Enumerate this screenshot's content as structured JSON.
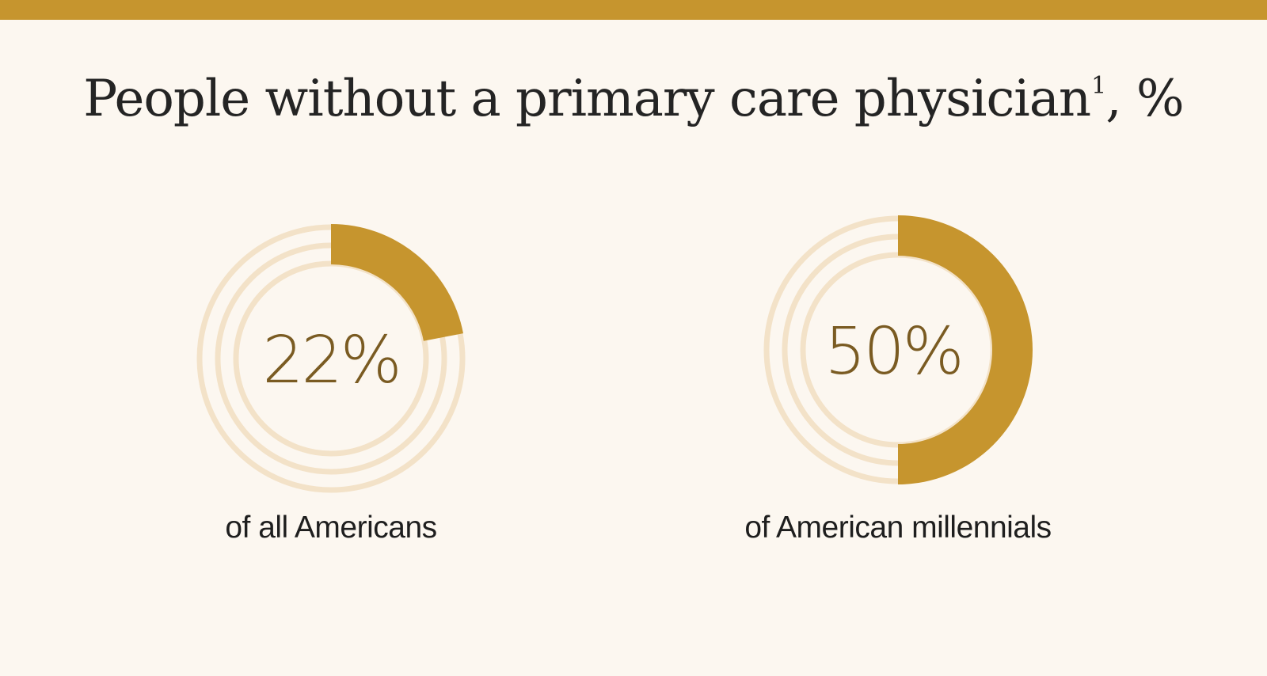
{
  "title": "People without a primary care physician",
  "title_footnote": "1",
  "title_suffix": ", %",
  "colors": {
    "accent": "#c6952e",
    "ring_track": "#f3e2c8",
    "value_text": "#7a5b22",
    "background": "#fcf7f0"
  },
  "chart_data": [
    {
      "type": "pie",
      "title": "People without a primary care physician, %",
      "value": 22,
      "label": "22%",
      "caption": "of all Americans"
    },
    {
      "type": "pie",
      "title": "People without a primary care physician, %",
      "value": 50,
      "label": "50%",
      "caption": "of American millennials"
    }
  ]
}
